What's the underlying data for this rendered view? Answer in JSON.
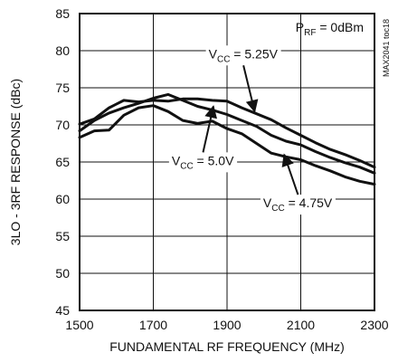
{
  "chart_data": {
    "type": "line",
    "title": "",
    "xlabel": "FUNDAMENTAL RF FREQUENCY (MHz)",
    "ylabel": "3LO - 3RF RESPONSE (dBc)",
    "xlim": [
      1500,
      2300
    ],
    "ylim": [
      45,
      85
    ],
    "x_ticks": [
      "1500",
      "1700",
      "1900",
      "2100",
      "2300"
    ],
    "y_ticks": [
      "45",
      "50",
      "55",
      "60",
      "65",
      "70",
      "75",
      "80",
      "85"
    ],
    "grid": true,
    "legend": "none",
    "watermark": "MAX2041 toc18",
    "condition": {
      "main": "P",
      "sub": "RF",
      "rest": " = 0dBm"
    },
    "series": [
      {
        "name": "VCC = 5.25V",
        "label_main": "V",
        "label_sub": "CC",
        "label_rest": " = 5.25V",
        "x": [
          1500,
          1540,
          1580,
          1620,
          1660,
          1700,
          1740,
          1780,
          1820,
          1860,
          1900,
          1940,
          1980,
          2020,
          2060,
          2100,
          2140,
          2180,
          2220,
          2260,
          2300
        ],
        "y": [
          70.1,
          70.8,
          72.3,
          73.3,
          73.1,
          73.3,
          73.2,
          73.5,
          73.5,
          73.3,
          73.2,
          72.3,
          71.5,
          70.7,
          69.6,
          68.6,
          67.6,
          66.7,
          66.0,
          65.2,
          64.3
        ]
      },
      {
        "name": "VCC = 5.0V",
        "label_main": "V",
        "label_sub": "CC",
        "label_rest": " = 5.0V",
        "x": [
          1500,
          1540,
          1580,
          1620,
          1660,
          1700,
          1740,
          1780,
          1820,
          1860,
          1900,
          1940,
          1980,
          2020,
          2060,
          2100,
          2140,
          2180,
          2220,
          2260,
          2300
        ],
        "y": [
          69.2,
          70.6,
          71.6,
          72.3,
          72.9,
          73.6,
          74.1,
          73.3,
          72.5,
          72.0,
          71.4,
          70.6,
          69.8,
          68.6,
          67.8,
          67.3,
          66.4,
          65.6,
          64.9,
          64.3,
          63.5
        ]
      },
      {
        "name": "VCC = 4.75V",
        "label_main": "V",
        "label_sub": "CC",
        "label_rest": " = 4.75V",
        "x": [
          1500,
          1540,
          1580,
          1620,
          1660,
          1700,
          1740,
          1780,
          1820,
          1860,
          1900,
          1940,
          1980,
          2020,
          2060,
          2100,
          2140,
          2180,
          2220,
          2260,
          2300
        ],
        "y": [
          68.3,
          69.2,
          69.3,
          71.3,
          72.3,
          72.6,
          71.8,
          70.6,
          70.2,
          70.5,
          69.5,
          68.8,
          67.5,
          66.2,
          65.7,
          65.3,
          64.5,
          63.8,
          63.0,
          62.4,
          62.0
        ]
      }
    ],
    "annotations": [
      {
        "series_index": 0,
        "label_x": 1850,
        "label_y": 79.6,
        "tip_x": 1975,
        "tip_y": 71.8,
        "anchor": "start"
      },
      {
        "series_index": 1,
        "label_x": 1750,
        "label_y": 65.2,
        "tip_x": 1863,
        "tip_y": 72.5,
        "anchor": "start"
      },
      {
        "series_index": 2,
        "label_x": 1998,
        "label_y": 59.5,
        "tip_x": 2055,
        "tip_y": 66.0,
        "anchor": "start"
      }
    ]
  }
}
